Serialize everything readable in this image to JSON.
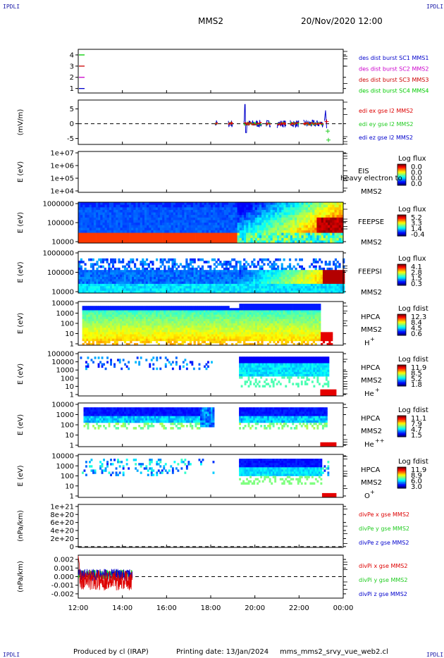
{
  "header": {
    "logo": "IPDLI",
    "spacecraft": "MMS2",
    "datetime": "20/Nov/2020 12:00"
  },
  "footer": {
    "logo": "IPDLI",
    "produced_by": "Produced by cl (IRAP)",
    "printing_date": "Printing date: 13/Jan/2024",
    "file": "mms_mms2_srvy_vue_web2.cl"
  },
  "colors": {
    "mms1": "#0000cc",
    "mms2": "#cc00cc",
    "mms3": "#cc0000",
    "mms4": "#00cc00",
    "x": "#dd0000",
    "y": "#22cc22",
    "z": "#0000cc"
  },
  "chart_data": [
    {
      "type": "line",
      "id": "burst",
      "yticks": [
        "1",
        "2",
        "3",
        "4"
      ],
      "ylim": [
        0.6,
        4.5
      ],
      "legend": [
        {
          "text": "des dist burst SC1 MMS1",
          "color": "#0000cc"
        },
        {
          "text": "des dist burst SC2 MMS2",
          "color": "#cc00cc"
        },
        {
          "text": "des dist burst SC3 MMS3",
          "color": "#cc0000"
        },
        {
          "text": "des dist burst SC4 MMS4",
          "color": "#00cc00"
        }
      ]
    },
    {
      "type": "line",
      "id": "edi",
      "ylabel": "(mV/m)",
      "yticks": [
        "5",
        "0",
        "-5"
      ],
      "ylim": [
        -7,
        8
      ],
      "legend": [
        {
          "text": "edi ex gse l2 MMS2",
          "color": "#dd0000"
        },
        {
          "text": "edi ey gse l2 MMS2",
          "color": "#22cc22"
        },
        {
          "text": "edi ez gse l2 MMS2",
          "color": "#0000cc"
        }
      ]
    },
    {
      "type": "heatmap",
      "id": "eis",
      "ylabel": "E (eV)",
      "yticks": [
        "1e+07",
        "1e+06",
        "1e+05",
        "1e+04"
      ],
      "instrument": "EIS",
      "sc": "MMS2",
      "overlay": "heavy electron to",
      "cbar_title": "Log flux",
      "cbar_ticks": [
        "0.0",
        "0.0",
        "0.0",
        "0.0"
      ]
    },
    {
      "type": "heatmap",
      "id": "feepse",
      "ylabel": "E (eV)",
      "yticks": [
        "1000000",
        "100000",
        "10000"
      ],
      "instrument": "FEEPSE",
      "sc": "MMS2",
      "cbar_title": "Log flux",
      "cbar_ticks": [
        "5.2",
        "3.3",
        "1.4",
        "-0.4"
      ]
    },
    {
      "type": "heatmap",
      "id": "feepsi",
      "ylabel": "E (eV)",
      "yticks": [
        "1000000",
        "100000",
        "10000"
      ],
      "instrument": "FEEPSI",
      "sc": "MMS2",
      "cbar_title": "Log flux",
      "cbar_ticks": [
        "4.1",
        "2.8",
        "1.5",
        "0.3"
      ]
    },
    {
      "type": "heatmap",
      "id": "hpca_h",
      "ylabel": "E (eV)",
      "yticks": [
        "10000",
        "1000",
        "100",
        "10",
        "1"
      ],
      "instrument": "HPCA",
      "sc": "MMS2",
      "species": "H",
      "charge": "+",
      "cbar_title": "Log fdist",
      "cbar_ticks": [
        "12.3",
        "8.4",
        "4.5",
        "0.6"
      ]
    },
    {
      "type": "heatmap",
      "id": "hpca_he1",
      "ylabel": "E (eV)",
      "yticks": [
        "100000",
        "10000",
        "1000",
        "100",
        "10",
        "1"
      ],
      "instrument": "HPCA",
      "sc": "MMS2",
      "species": "He",
      "charge": "+",
      "cbar_title": "Log fdist",
      "cbar_ticks": [
        "11.9",
        "8.5",
        "5.2",
        "1.8"
      ]
    },
    {
      "type": "heatmap",
      "id": "hpca_he2",
      "ylabel": "E (eV)",
      "yticks": [
        "10000",
        "1000",
        "100",
        "10",
        "1"
      ],
      "instrument": "HPCA",
      "sc": "MMS2",
      "species": "He",
      "charge": "++",
      "cbar_title": "Log fdist",
      "cbar_ticks": [
        "11.1",
        "7.9",
        "4.7",
        "1.5"
      ]
    },
    {
      "type": "heatmap",
      "id": "hpca_o",
      "ylabel": "E (eV)",
      "yticks": [
        "10000",
        "1000",
        "100",
        "10",
        "1"
      ],
      "instrument": "HPCA",
      "sc": "MMS2",
      "species": "O",
      "charge": "+",
      "cbar_title": "Log fdist",
      "cbar_ticks": [
        "11.9",
        "8.9",
        "6.0",
        "3.0"
      ]
    },
    {
      "type": "line",
      "id": "divpe",
      "ylabel": "(nPa/km)",
      "yticks": [
        "1e+21",
        "8e+20",
        "6e+20",
        "4e+20",
        "2e+20",
        "0"
      ],
      "ylim": [
        -2e+19,
        1.05e+21
      ],
      "legend": [
        {
          "text": "divPe x gse MMS2",
          "color": "#dd0000"
        },
        {
          "text": "divPe y gse MMS2",
          "color": "#22cc22"
        },
        {
          "text": "divPe z gse MMS2",
          "color": "#0000cc"
        }
      ]
    },
    {
      "type": "line",
      "id": "divpi",
      "ylabel": "(nPa/km)",
      "yticks": [
        "0.002",
        "0.001",
        "0.000",
        "-0.001",
        "-0.002"
      ],
      "ylim": [
        -0.0025,
        0.0025
      ],
      "legend": [
        {
          "text": "divPi x gse MMS2",
          "color": "#dd0000"
        },
        {
          "text": "divPi y gse MMS2",
          "color": "#22cc22"
        },
        {
          "text": "divPi z gse MMS2",
          "color": "#0000cc"
        }
      ]
    }
  ],
  "xaxis": {
    "ticks": [
      "12:00",
      "14:00",
      "16:00",
      "18:00",
      "20:00",
      "22:00",
      "00:00"
    ],
    "range_hours": [
      12,
      24
    ]
  }
}
